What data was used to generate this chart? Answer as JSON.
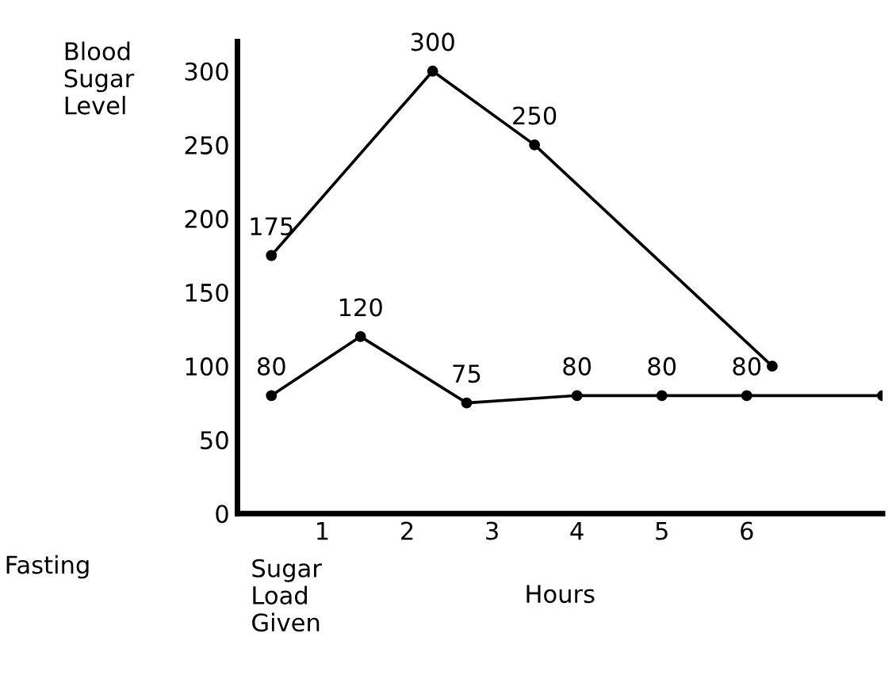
{
  "chart_data": {
    "type": "line",
    "ylabel": "Blood\nSugar\nLevel",
    "xlabel": "Hours",
    "xlim": [
      0,
      7.6
    ],
    "xticks": [
      1,
      2,
      3,
      4,
      5,
      6
    ],
    "ylim": [
      0,
      320
    ],
    "yticks": [
      0,
      50,
      100,
      150,
      200,
      250,
      300
    ],
    "series": [
      {
        "color": "#000000",
        "x": [
          0.4,
          2.3,
          3.5,
          6.3
        ],
        "values": [
          175,
          300,
          250,
          100
        ],
        "value_labels": [
          "175",
          "300",
          "250",
          null
        ]
      },
      {
        "color": "#000000",
        "x": [
          0.4,
          1.45,
          2.7,
          4,
          5,
          6,
          7.6
        ],
        "values": [
          80,
          120,
          75,
          80,
          80,
          80,
          80
        ],
        "value_labels": [
          "80",
          "120",
          "75",
          "80",
          "80",
          "80",
          null
        ]
      }
    ],
    "annotations": [
      "Fasting",
      "Sugar\nLoad\nGiven"
    ],
    "marker": "circle",
    "line_style": "solid",
    "grid": false,
    "legend": false
  }
}
